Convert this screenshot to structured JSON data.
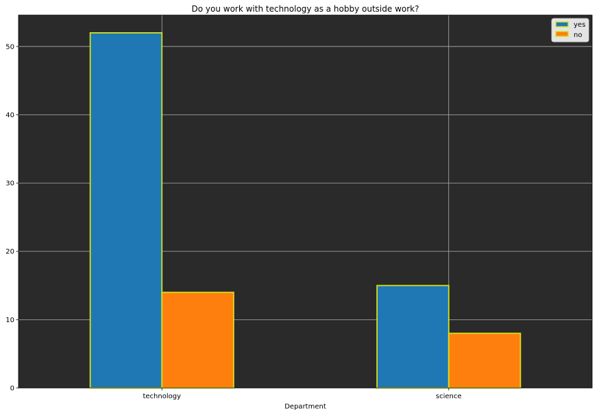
{
  "chart_data": {
    "type": "bar",
    "title": "Do you work with technology as a hobby outside work?",
    "xlabel": "Department",
    "ylabel": "",
    "categories": [
      "technology",
      "science"
    ],
    "series": [
      {
        "name": "yes",
        "values": [
          52,
          15
        ],
        "color": "#1f77b4"
      },
      {
        "name": "no",
        "values": [
          14,
          8
        ],
        "color": "#ff7f0e"
      }
    ],
    "ylim": [
      0,
      54.6
    ],
    "yticks": [
      0,
      10,
      20,
      30,
      40,
      50
    ],
    "grid": true,
    "legend": "top-right",
    "plot_background": "#2a2a2a",
    "bar_edge_color": "#d4e21c",
    "grid_color": "#b0b0b0"
  }
}
